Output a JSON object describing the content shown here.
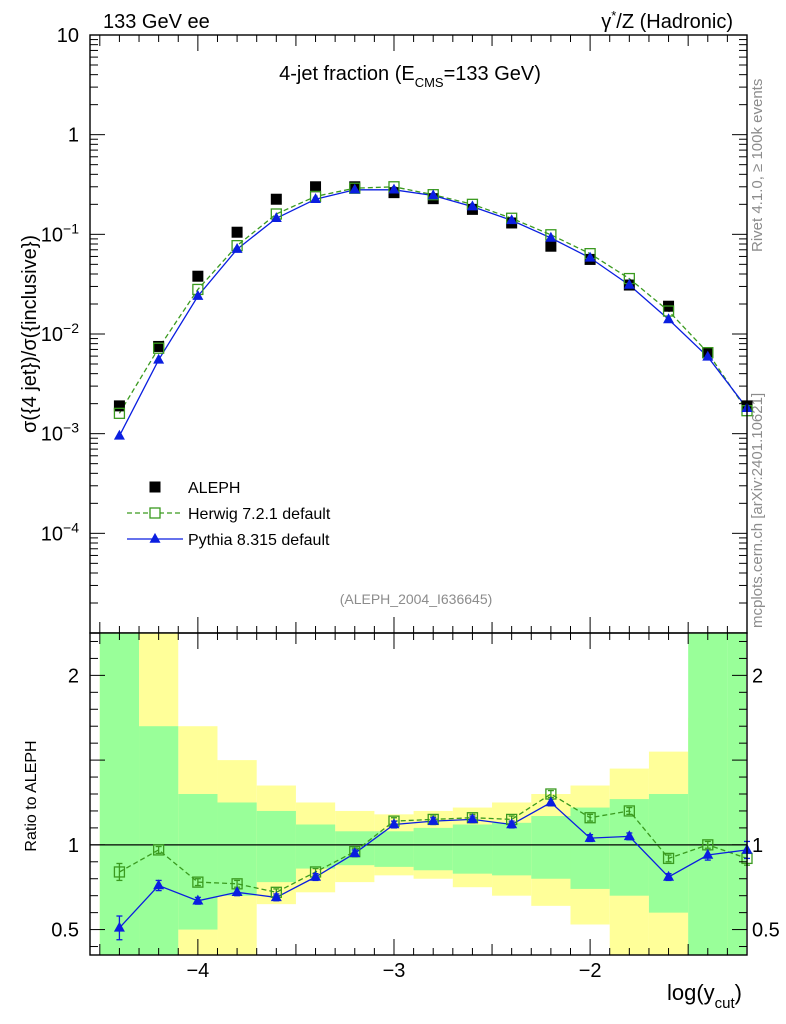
{
  "header": {
    "left": "133 GeV ee",
    "right_prefix": "γ",
    "right_sup": "*",
    "right_suffix": "/Z (Hadronic)"
  },
  "side_labels": {
    "rivet": "Rivet 4.1.0, ≥ 100k events",
    "mcplots": "mcplots.cern.ch [arXiv:2401.10621]"
  },
  "chart_data": {
    "type": "scatter",
    "title_main": "4-jet fraction (E",
    "title_sub": "CMS",
    "title_tail": "=133 GeV)",
    "annotation": "(ALEPH_2004_I636645)",
    "ylabel": "σ({4 jet})/σ({inclusive})",
    "ratio_ylabel": "Ratio to ALEPH",
    "xlabel": "log(y",
    "xlabel_sub": "cut",
    "xlabel_tail": ")",
    "xlim": [
      -4.55,
      -1.2
    ],
    "ylim_log10": [
      -5,
      1
    ],
    "ratio_ylim": [
      0.35,
      2.25
    ],
    "yticks_main": [
      {
        "value": 10,
        "label": "10",
        "exp": ""
      },
      {
        "value": 1,
        "label": "1",
        "exp": ""
      },
      {
        "value": 0.1,
        "label": "10",
        "exp": "−1"
      },
      {
        "value": 0.01,
        "label": "10",
        "exp": "−2"
      },
      {
        "value": 0.001,
        "label": "10",
        "exp": "−3"
      },
      {
        "value": 0.0001,
        "label": "10",
        "exp": "−4"
      }
    ],
    "xticks": [
      {
        "value": -4,
        "label": "−4"
      },
      {
        "value": -3,
        "label": "−3"
      },
      {
        "value": -2,
        "label": "−2"
      }
    ],
    "yticks_ratio": [
      {
        "value": 2,
        "label": "2"
      },
      {
        "value": 1,
        "label": "1"
      },
      {
        "value": 0.5,
        "label": "0.5"
      }
    ],
    "x": [
      -4.4,
      -4.2,
      -4.0,
      -3.8,
      -3.6,
      -3.4,
      -3.2,
      -3.0,
      -2.8,
      -2.6,
      -2.4,
      -2.2,
      -2.0,
      -1.8,
      -1.6,
      -1.4,
      -1.2
    ],
    "bins": [
      -4.5,
      -4.3,
      -4.1,
      -3.9,
      -3.7,
      -3.5,
      -3.3,
      -3.1,
      -2.9,
      -2.7,
      -2.5,
      -2.3,
      -2.1,
      -1.9,
      -1.7,
      -1.5,
      -1.3,
      -1.1
    ],
    "series": [
      {
        "name": "ALEPH",
        "style": "data",
        "color": "#000000",
        "values": [
          0.0019,
          0.0075,
          0.038,
          0.105,
          0.225,
          0.3,
          0.3,
          0.262,
          0.228,
          0.178,
          0.13,
          0.076,
          0.056,
          0.031,
          0.019,
          0.0065,
          0.0019
        ]
      },
      {
        "name": "Herwig 7.2.1 default",
        "style": "herwig",
        "color": "#3a9a1f",
        "values": [
          0.0016,
          0.0072,
          0.028,
          0.077,
          0.16,
          0.24,
          0.29,
          0.3,
          0.25,
          0.2,
          0.145,
          0.099,
          0.064,
          0.036,
          0.017,
          0.0065,
          0.0017
        ]
      },
      {
        "name": "Pythia 8.315 default",
        "style": "pythia",
        "color": "#0a1ee0",
        "values": [
          0.00095,
          0.0055,
          0.024,
          0.071,
          0.145,
          0.225,
          0.28,
          0.28,
          0.245,
          0.19,
          0.138,
          0.092,
          0.058,
          0.031,
          0.014,
          0.0059,
          0.0018
        ]
      }
    ],
    "ratio_series": [
      {
        "name": "Herwig 7.2.1 default",
        "style": "herwig",
        "color": "#3a9a1f",
        "values": [
          0.84,
          0.97,
          0.78,
          0.77,
          0.72,
          0.84,
          0.96,
          1.14,
          1.15,
          1.16,
          1.15,
          1.3,
          1.16,
          1.2,
          0.92,
          1.0,
          0.92
        ],
        "errors": [
          0.05,
          0.02,
          0.02,
          0.02,
          0.02,
          0.02,
          0.02,
          0.02,
          0.02,
          0.02,
          0.02,
          0.02,
          0.02,
          0.02,
          0.02,
          0.02,
          0.04
        ]
      },
      {
        "name": "Pythia 8.315 default",
        "style": "pythia",
        "color": "#0a1ee0",
        "values": [
          0.51,
          0.76,
          0.67,
          0.72,
          0.69,
          0.81,
          0.95,
          1.12,
          1.14,
          1.15,
          1.12,
          1.25,
          1.04,
          1.05,
          0.81,
          0.94,
          0.97
        ],
        "errors": [
          0.07,
          0.03,
          0.02,
          0.02,
          0.02,
          0.02,
          0.02,
          0.02,
          0.02,
          0.02,
          0.02,
          0.02,
          0.02,
          0.02,
          0.02,
          0.03,
          0.05
        ]
      }
    ],
    "uncertainty_bands": {
      "inner_color": "#99ff99",
      "outer_color": "#ffff99",
      "inner": [
        [
          0.35,
          2.25
        ],
        [
          0.35,
          1.7
        ],
        [
          0.5,
          1.3
        ],
        [
          0.7,
          1.25
        ],
        [
          0.78,
          1.2
        ],
        [
          0.86,
          1.12
        ],
        [
          0.88,
          1.08
        ],
        [
          0.87,
          1.08
        ],
        [
          0.85,
          1.1
        ],
        [
          0.83,
          1.12
        ],
        [
          0.82,
          1.13
        ],
        [
          0.8,
          1.17
        ],
        [
          0.74,
          1.22
        ],
        [
          0.7,
          1.27
        ],
        [
          0.6,
          1.3
        ],
        [
          0.35,
          2.25
        ],
        [
          0.35,
          2.25
        ]
      ],
      "outer": [
        [
          0.35,
          2.25
        ],
        [
          0.35,
          2.25
        ],
        [
          0.35,
          1.7
        ],
        [
          0.35,
          1.5
        ],
        [
          0.65,
          1.35
        ],
        [
          0.72,
          1.25
        ],
        [
          0.78,
          1.2
        ],
        [
          0.82,
          1.18
        ],
        [
          0.8,
          1.2
        ],
        [
          0.75,
          1.22
        ],
        [
          0.7,
          1.25
        ],
        [
          0.64,
          1.3
        ],
        [
          0.53,
          1.35
        ],
        [
          0.35,
          1.45
        ],
        [
          0.35,
          1.55
        ],
        [
          0.35,
          1.75
        ],
        [
          0.35,
          2.25
        ]
      ]
    },
    "legend_position": "lower-left"
  }
}
